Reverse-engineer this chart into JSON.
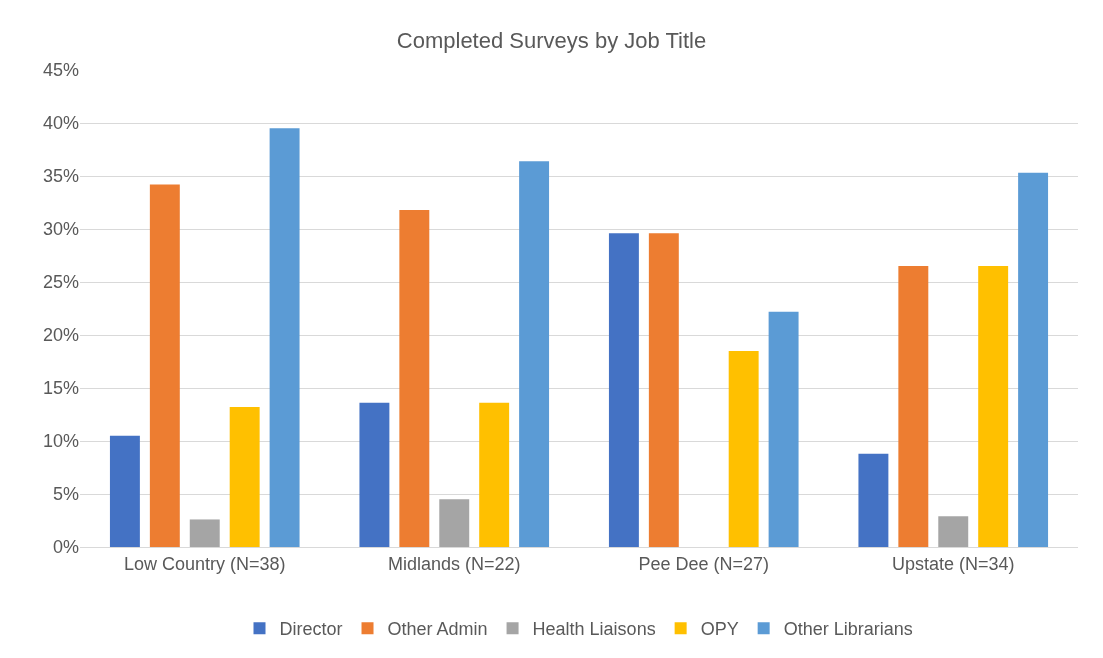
{
  "chart_data": {
    "type": "bar",
    "title": "Completed Surveys by Job Title",
    "categories": [
      "Low Country (N=38)",
      "Midlands (N=22)",
      "Pee Dee (N=27)",
      "Upstate (N=34)"
    ],
    "series": [
      {
        "name": "Director",
        "color": "#4472c4",
        "values": [
          10.5,
          13.6,
          29.6,
          8.8
        ]
      },
      {
        "name": "Other Admin",
        "color": "#ed7d31",
        "values": [
          34.2,
          31.8,
          29.6,
          26.5
        ]
      },
      {
        "name": "Health Liaisons",
        "color": "#a5a5a5",
        "values": [
          2.6,
          4.5,
          0,
          2.9
        ]
      },
      {
        "name": "OPY",
        "color": "#ffc000",
        "values": [
          13.2,
          13.6,
          18.5,
          26.5
        ]
      },
      {
        "name": "Other Librarians",
        "color": "#5b9bd5",
        "values": [
          39.5,
          36.4,
          22.2,
          35.3
        ]
      }
    ],
    "ylim": [
      0,
      45
    ],
    "yticks": [
      {
        "value": 0,
        "label": "0%"
      },
      {
        "value": 5,
        "label": "5%"
      },
      {
        "value": 10,
        "label": "10%"
      },
      {
        "value": 15,
        "label": "15%"
      },
      {
        "value": 20,
        "label": "20%"
      },
      {
        "value": 25,
        "label": "25%"
      },
      {
        "value": 30,
        "label": "30%"
      },
      {
        "value": 35,
        "label": "35%"
      },
      {
        "value": 40,
        "label": "40%"
      },
      {
        "value": 45,
        "label": "45%"
      }
    ],
    "grid": "y",
    "legend": "bottom"
  }
}
